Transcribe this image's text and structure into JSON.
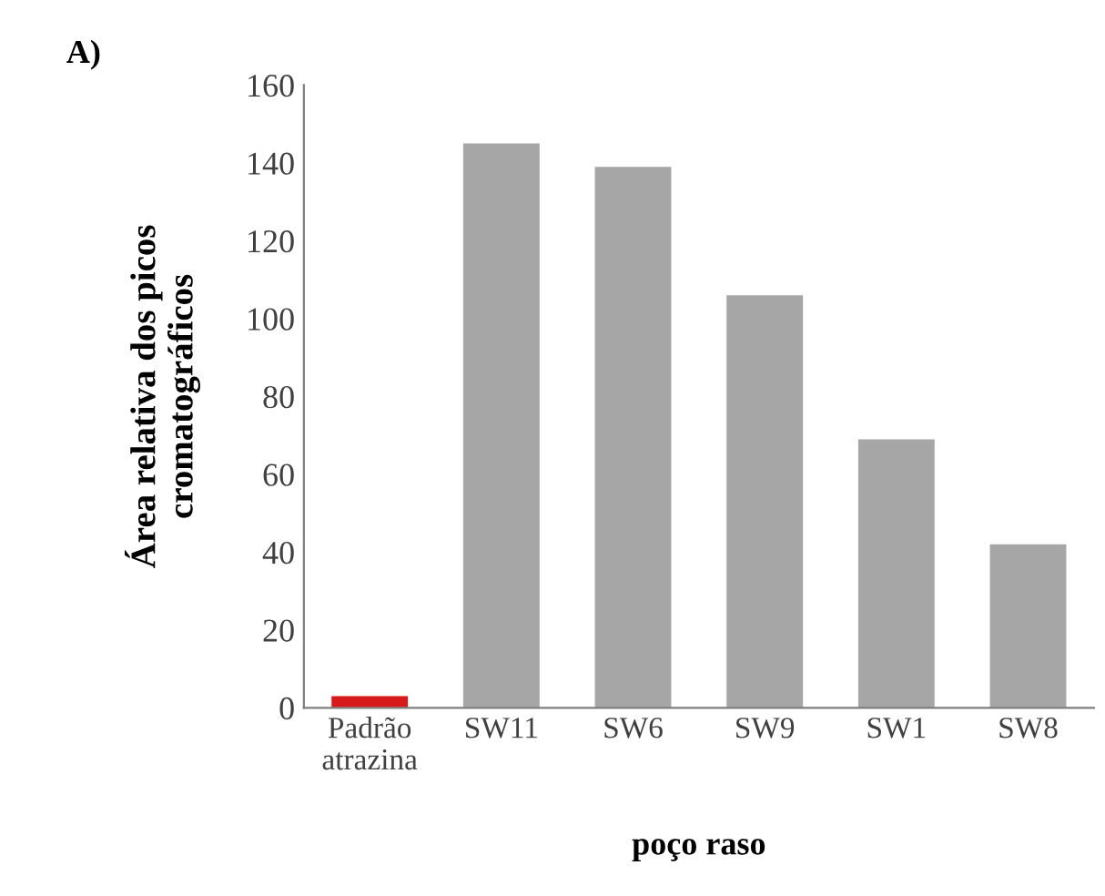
{
  "chart_data": {
    "type": "bar",
    "title": "A)",
    "xlabel": "poço raso",
    "ylabel": "Área relativa dos picos\ncromatográficos",
    "categories": [
      "Padrão\natrazina",
      "SW11",
      "SW6",
      "SW9",
      "SW1",
      "SW8"
    ],
    "values": [
      3,
      145,
      139,
      106,
      69,
      42
    ],
    "colors": [
      "#d7191c",
      "#a6a6a6",
      "#a6a6a6",
      "#a6a6a6",
      "#a6a6a6",
      "#a6a6a6"
    ],
    "ylim": [
      0,
      160
    ],
    "yticks": [
      0,
      20,
      40,
      60,
      80,
      100,
      120,
      140,
      160
    ],
    "grid": false
  }
}
